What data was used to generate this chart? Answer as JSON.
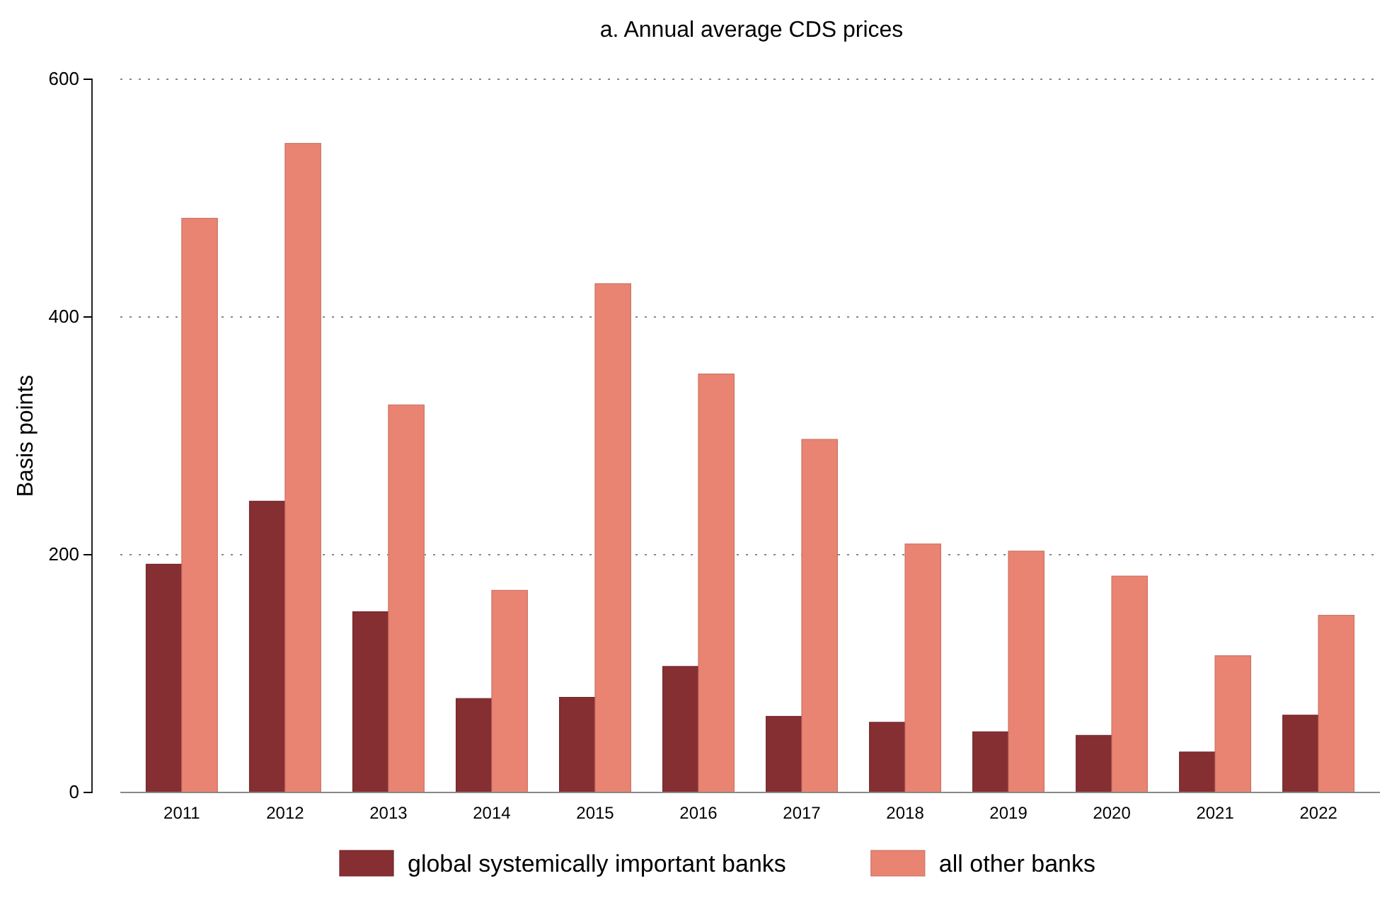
{
  "chart_data": {
    "type": "bar",
    "title": "a. Annual average CDS prices",
    "ylabel": "Basis points",
    "categories": [
      "2011",
      "2012",
      "2013",
      "2014",
      "2015",
      "2016",
      "2017",
      "2018",
      "2019",
      "2020",
      "2021",
      "2022"
    ],
    "series": [
      {
        "name": "global systemically important banks",
        "color": "#862f33",
        "values": [
          192,
          245,
          152,
          79,
          80,
          106,
          64,
          59,
          51,
          48,
          34,
          65
        ]
      },
      {
        "name": "all other banks",
        "color": "#ea8472",
        "values": [
          483,
          546,
          326,
          170,
          428,
          352,
          297,
          209,
          203,
          182,
          115,
          149
        ]
      }
    ],
    "ylim": [
      0,
      600
    ],
    "yticks": [
      0,
      200,
      400,
      600
    ],
    "grid": "y",
    "legend": "bottom"
  }
}
